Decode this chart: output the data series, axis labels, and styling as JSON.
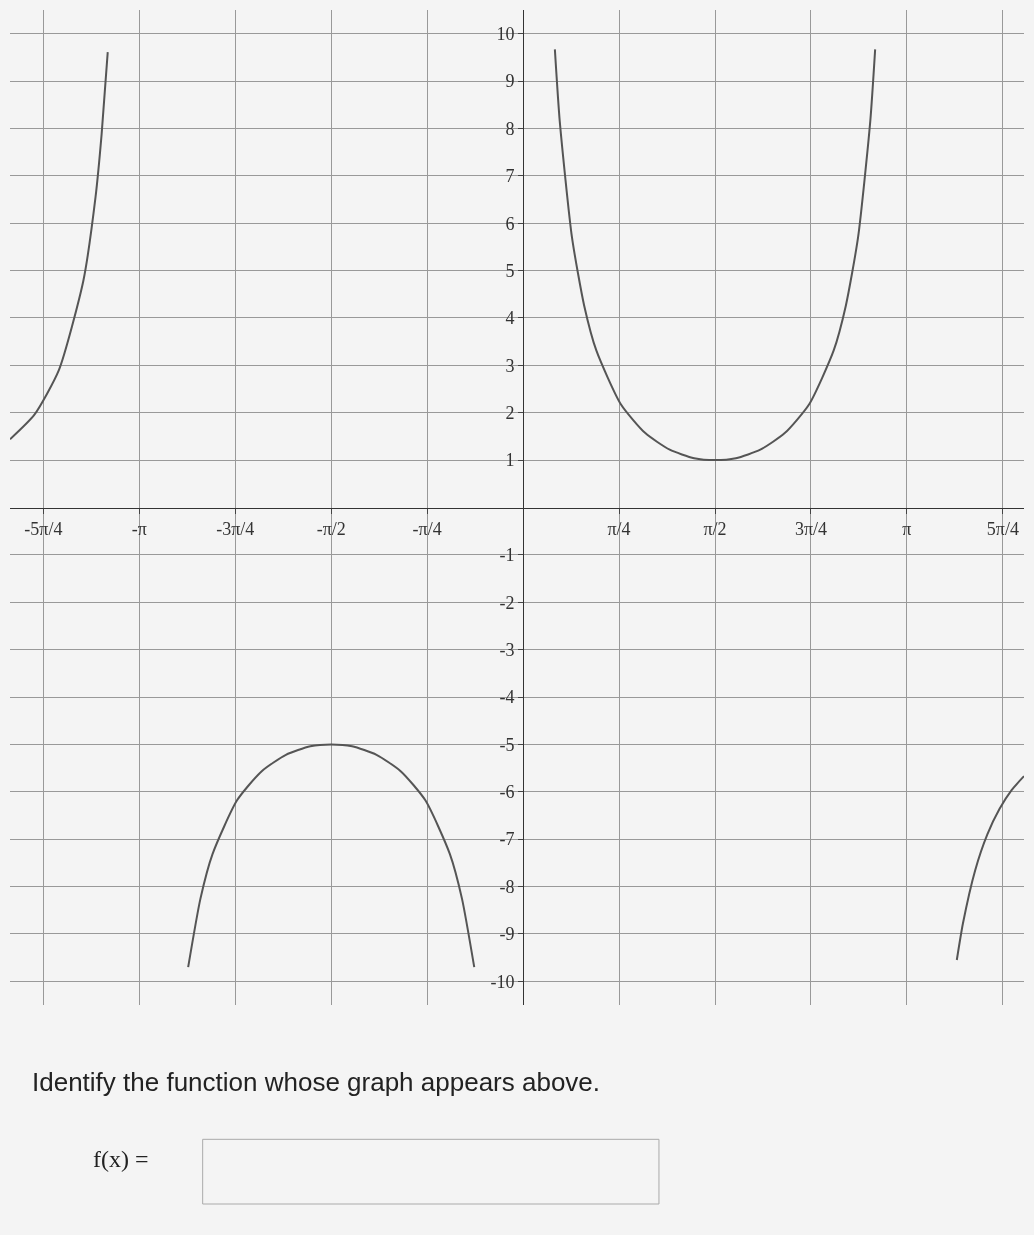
{
  "chart_data": {
    "type": "line",
    "xlim": [
      -4.2,
      4.1
    ],
    "ylim": [
      -10.5,
      10.5
    ],
    "xticks": [
      {
        "value": -3.927,
        "label": "-5π/4"
      },
      {
        "value": -3.1416,
        "label": "-π"
      },
      {
        "value": -2.3562,
        "label": "-3π/4"
      },
      {
        "value": -1.5708,
        "label": "-π/2"
      },
      {
        "value": -0.7854,
        "label": "-π/4"
      },
      {
        "value": 0.7854,
        "label": "π/4"
      },
      {
        "value": 1.5708,
        "label": "π/2"
      },
      {
        "value": 2.3562,
        "label": "3π/4"
      },
      {
        "value": 3.1416,
        "label": "π"
      },
      {
        "value": 3.927,
        "label": "5π/4"
      }
    ],
    "yticks": [
      -10,
      -9,
      -8,
      -7,
      -6,
      -5,
      -4,
      -3,
      -2,
      -1,
      1,
      2,
      3,
      4,
      5,
      6,
      7,
      8,
      9,
      10
    ],
    "grid": true,
    "marker": "none",
    "line_style": "solid",
    "series": [
      {
        "color": "#555555",
        "x": [
          -4.2,
          -4.0,
          -3.8,
          -3.6,
          -3.5,
          -3.45,
          -3.4,
          0,
          0.26,
          0.3,
          0.4,
          0.5,
          0.6,
          0.8,
          1.0,
          1.2,
          1.4,
          1.5708,
          1.7416,
          1.9416,
          2.1416,
          2.3416,
          2.5416,
          2.6416,
          2.7416,
          2.8416,
          2.8816
        ],
        "values": [
          1.44,
          1.96,
          2.9,
          4.78,
          6.55,
          7.88,
          9.61,
          null,
          9.67,
          8.15,
          5.7,
          4.26,
          3.31,
          2.18,
          1.57,
          1.22,
          1.04,
          1,
          1.04,
          1.22,
          1.57,
          2.18,
          3.31,
          4.26,
          5.7,
          8.15,
          9.67
        ]
      },
      {
        "color": "#555555",
        "x": [
          -2.7416,
          -2.6416,
          -2.5416,
          -2.3416,
          -2.1416,
          -1.9416,
          -1.7416,
          -1.5708,
          -1.4,
          -1.2,
          -1.0,
          -0.8,
          -0.6,
          -0.5,
          -0.4,
          0,
          3.55,
          3.6,
          3.7,
          3.8,
          3.9,
          4.0,
          4.1
        ],
        "values": [
          -9.7,
          -8.26,
          -7.31,
          -6.18,
          -5.57,
          -5.22,
          -5.04,
          -5,
          -5.04,
          -5.22,
          -5.57,
          -6.18,
          -7.31,
          -8.26,
          -9.7,
          null,
          -9.55,
          -8.78,
          -7.66,
          -6.9,
          -6.36,
          -5.96,
          -5.67
        ]
      }
    ],
    "annotations": [
      "Identify the function whose graph appears above.",
      "f(x) ="
    ]
  }
}
